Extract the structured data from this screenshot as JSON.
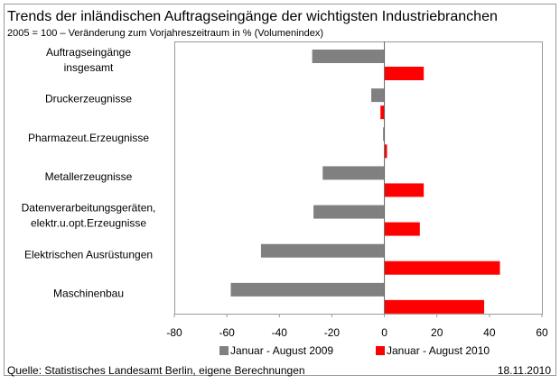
{
  "chart_data": {
    "type": "hbar",
    "title": "Trends der inländischen Auftragseingänge der wichtigsten Industriebranchen",
    "subtitle": "2005 = 100 – Veränderung zum Vorjahreszeitraum in % (Volumenindex)",
    "categories": [
      "Auftragseingänge\ninsgesamt",
      "Druckerzeugnisse",
      "Pharmazeut.Erzeugnisse",
      "Metallerzeugnisse",
      "Datenverarbeitungsgeräten,\nelektr.u.opt.Erzeugnisse",
      "Elektrischen Ausrüstungen",
      "Maschinenbau"
    ],
    "series": [
      {
        "name": "Januar - August 2009",
        "color": "#808080",
        "values": [
          -27.5,
          -5,
          -0.5,
          -23.5,
          -27,
          -47,
          -58.5
        ]
      },
      {
        "name": "Januar - August 2010",
        "color": "#ff0000",
        "values": [
          15,
          -1.5,
          1,
          15,
          13.5,
          44,
          38
        ]
      }
    ],
    "xlim": [
      -80,
      60
    ],
    "xticks": [
      -80,
      -60,
      -40,
      -20,
      0,
      20,
      40,
      60
    ],
    "legend": "bottom",
    "source": "Quelle: Statistisches Landesamt Berlin, eigene Berechnungen",
    "date": "18.11.2010"
  }
}
